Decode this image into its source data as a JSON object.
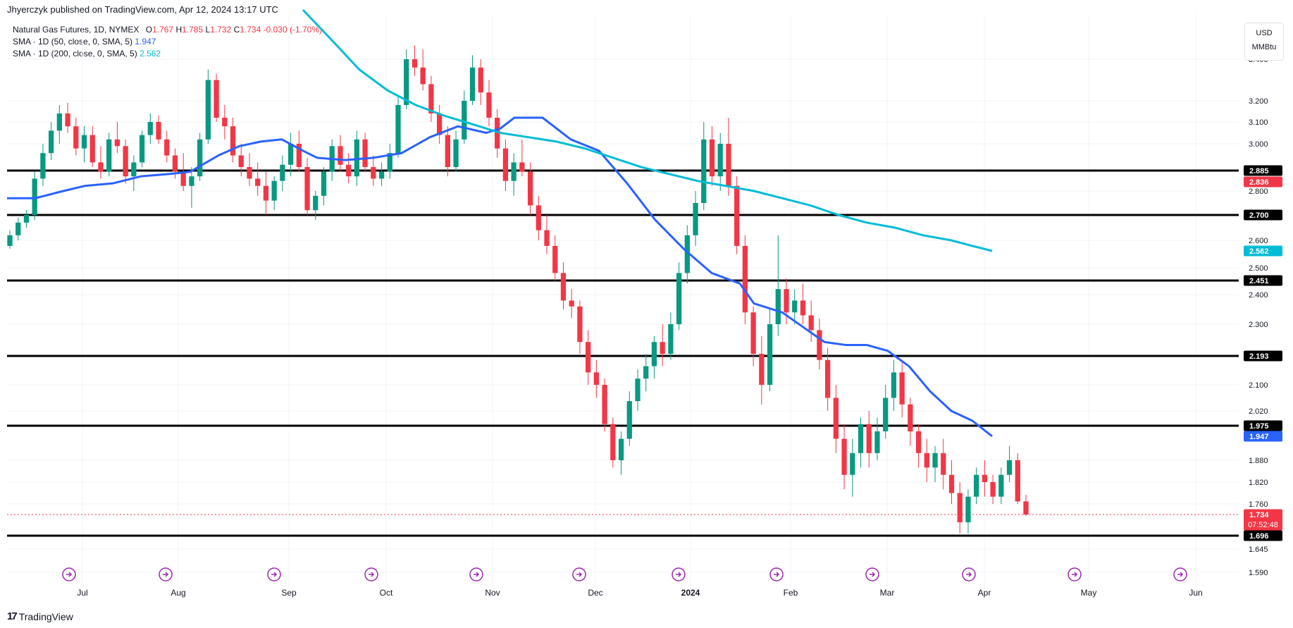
{
  "header": {
    "publish_line": "Jhyerczyk published on TradingView.com, Apr 12, 2024 13:17 UTC"
  },
  "legend": {
    "symbol": "Natural Gas Futures, 1D, NYMEX",
    "ohlc_prefix": "O",
    "open": "1.767",
    "high_prefix": "H",
    "high": "1.785",
    "low_prefix": "L",
    "low": "1.732",
    "close_prefix": "C",
    "close": "1.734",
    "change": "-0.030 (-1.70%)",
    "sma50_label": "SMA · 1D (50, close, 0, SMA, 5)",
    "sma50_value": "1.947",
    "sma200_label": "SMA · 1D (200, close, 0, SMA, 5)",
    "sma200_value": "2.562"
  },
  "units": {
    "currency": "USD",
    "unit": "MMBtu"
  },
  "footer": {
    "brand": "TradingView",
    "logo_glyph": "17"
  },
  "colors": {
    "up": "#089981",
    "down": "#f23645",
    "sma50": "#2962ff",
    "sma200": "#00bcd4",
    "hline": "#000000",
    "event": "#9c27b0",
    "grid": "#f0f3fa"
  },
  "chart_data": {
    "type": "candlestick",
    "y_ticks": [
      "1.590",
      "1.645",
      "1.760",
      "1.820",
      "1.880",
      "2.020",
      "2.100",
      "2.300",
      "2.400",
      "2.500",
      "2.600",
      "2.800",
      "3.000",
      "3.100",
      "3.200",
      "3.400"
    ],
    "x_ticks": [
      "Jul",
      "Aug",
      "Sep",
      "Oct",
      "Nov",
      "Dec",
      "2024",
      "Feb",
      "Mar",
      "Apr",
      "May",
      "Jun"
    ],
    "horizontal_levels": [
      "2.885",
      "2.700",
      "2.451",
      "2.193",
      "1.975",
      "1.696"
    ],
    "price_badges": [
      {
        "label": "2.885",
        "color": "#000000"
      },
      {
        "label": "2.836",
        "color": "#f23645"
      },
      {
        "label": "2.700",
        "color": "#000000"
      },
      {
        "label": "2.562",
        "color": "#00bcd4"
      },
      {
        "label": "2.451",
        "color": "#000000"
      },
      {
        "label": "2.193",
        "color": "#000000"
      },
      {
        "label": "1.975",
        "color": "#000000"
      },
      {
        "label": "1.947",
        "color": "#2962ff"
      },
      {
        "label": "1.734",
        "color": "#f23645",
        "extra": "07:52:48"
      },
      {
        "label": "1.696",
        "color": "#000000"
      }
    ],
    "last_price": 1.734,
    "countdown": "07:52:48",
    "series": [
      {
        "type": "sma",
        "period": 50,
        "last": 1.947,
        "points": [
          [
            0,
            2.77
          ],
          [
            40,
            2.77
          ],
          [
            80,
            2.8
          ],
          [
            110,
            2.82
          ],
          [
            150,
            2.83
          ],
          [
            190,
            2.86
          ],
          [
            230,
            2.87
          ],
          [
            260,
            2.88
          ],
          [
            300,
            2.95
          ],
          [
            330,
            2.99
          ],
          [
            360,
            3.01
          ],
          [
            390,
            3.02
          ],
          [
            420,
            2.97
          ],
          [
            440,
            2.94
          ],
          [
            480,
            2.93
          ],
          [
            520,
            2.94
          ],
          [
            560,
            2.96
          ],
          [
            600,
            3.03
          ],
          [
            640,
            3.08
          ],
          [
            680,
            3.05
          ],
          [
            700,
            3.07
          ],
          [
            720,
            3.12
          ],
          [
            760,
            3.12
          ],
          [
            800,
            3.02
          ],
          [
            840,
            2.97
          ],
          [
            880,
            2.83
          ],
          [
            920,
            2.68
          ],
          [
            960,
            2.57
          ],
          [
            1000,
            2.48
          ],
          [
            1040,
            2.44
          ],
          [
            1060,
            2.37
          ],
          [
            1100,
            2.34
          ],
          [
            1130,
            2.29
          ],
          [
            1160,
            2.24
          ],
          [
            1190,
            2.23
          ],
          [
            1220,
            2.23
          ],
          [
            1250,
            2.21
          ],
          [
            1280,
            2.16
          ],
          [
            1310,
            2.08
          ],
          [
            1340,
            2.02
          ],
          [
            1370,
            1.99
          ],
          [
            1398,
            1.947
          ]
        ]
      },
      {
        "type": "sma",
        "period": 200,
        "last": 2.562,
        "points": [
          [
            420,
            3.65
          ],
          [
            460,
            3.5
          ],
          [
            500,
            3.35
          ],
          [
            540,
            3.25
          ],
          [
            580,
            3.18
          ],
          [
            620,
            3.13
          ],
          [
            660,
            3.09
          ],
          [
            700,
            3.05
          ],
          [
            740,
            3.03
          ],
          [
            780,
            3.01
          ],
          [
            820,
            2.98
          ],
          [
            860,
            2.94
          ],
          [
            900,
            2.9
          ],
          [
            940,
            2.87
          ],
          [
            980,
            2.84
          ],
          [
            1020,
            2.82
          ],
          [
            1060,
            2.8
          ],
          [
            1100,
            2.77
          ],
          [
            1140,
            2.74
          ],
          [
            1180,
            2.7
          ],
          [
            1220,
            2.67
          ],
          [
            1260,
            2.65
          ],
          [
            1300,
            2.62
          ],
          [
            1340,
            2.6
          ],
          [
            1370,
            2.58
          ],
          [
            1398,
            2.562
          ]
        ]
      }
    ],
    "ohlc": [
      [
        2.58,
        2.64,
        2.57,
        2.62
      ],
      [
        2.62,
        2.69,
        2.6,
        2.67
      ],
      [
        2.67,
        2.72,
        2.65,
        2.7
      ],
      [
        2.7,
        2.88,
        2.68,
        2.85
      ],
      [
        2.85,
        3.0,
        2.82,
        2.96
      ],
      [
        2.96,
        3.1,
        2.93,
        3.06
      ],
      [
        3.06,
        3.18,
        3.0,
        3.14
      ],
      [
        3.14,
        3.19,
        3.05,
        3.08
      ],
      [
        3.08,
        3.12,
        2.95,
        2.98
      ],
      [
        2.98,
        3.08,
        2.92,
        3.04
      ],
      [
        3.04,
        3.08,
        2.9,
        2.92
      ],
      [
        2.92,
        2.99,
        2.85,
        2.88
      ],
      [
        2.88,
        3.05,
        2.86,
        3.02
      ],
      [
        3.02,
        3.1,
        2.96,
        2.99
      ],
      [
        2.99,
        3.02,
        2.83,
        2.86
      ],
      [
        2.86,
        2.95,
        2.8,
        2.92
      ],
      [
        2.92,
        3.06,
        2.9,
        3.04
      ],
      [
        3.04,
        3.14,
        3.0,
        3.1
      ],
      [
        3.1,
        3.13,
        3.0,
        3.02
      ],
      [
        3.02,
        3.06,
        2.92,
        2.95
      ],
      [
        2.95,
        2.98,
        2.85,
        2.88
      ],
      [
        2.88,
        2.96,
        2.8,
        2.82
      ],
      [
        2.82,
        2.9,
        2.73,
        2.86
      ],
      [
        2.86,
        3.05,
        2.84,
        3.02
      ],
      [
        3.02,
        3.35,
        3.0,
        3.3
      ],
      [
        3.3,
        3.33,
        3.1,
        3.12
      ],
      [
        3.12,
        3.18,
        3.02,
        3.08
      ],
      [
        3.08,
        3.12,
        2.92,
        2.95
      ],
      [
        2.95,
        3.0,
        2.86,
        2.9
      ],
      [
        2.9,
        2.96,
        2.82,
        2.85
      ],
      [
        2.85,
        2.92,
        2.78,
        2.82
      ],
      [
        2.82,
        2.88,
        2.7,
        2.76
      ],
      [
        2.76,
        2.86,
        2.72,
        2.84
      ],
      [
        2.84,
        2.95,
        2.8,
        2.91
      ],
      [
        2.91,
        3.05,
        2.86,
        3.0
      ],
      [
        3.0,
        3.06,
        2.88,
        2.9
      ],
      [
        2.9,
        2.94,
        2.7,
        2.72
      ],
      [
        2.72,
        2.8,
        2.68,
        2.78
      ],
      [
        2.78,
        2.9,
        2.74,
        2.88
      ],
      [
        2.88,
        3.02,
        2.84,
        2.99
      ],
      [
        2.99,
        3.04,
        2.88,
        2.91
      ],
      [
        2.91,
        2.96,
        2.83,
        2.86
      ],
      [
        2.86,
        3.06,
        2.82,
        3.02
      ],
      [
        3.02,
        3.05,
        2.88,
        2.9
      ],
      [
        2.9,
        2.95,
        2.82,
        2.85
      ],
      [
        2.85,
        2.92,
        2.82,
        2.88
      ],
      [
        2.88,
        3.0,
        2.85,
        2.96
      ],
      [
        2.96,
        3.22,
        2.94,
        3.18
      ],
      [
        3.18,
        3.45,
        3.16,
        3.4
      ],
      [
        3.4,
        3.47,
        3.32,
        3.36
      ],
      [
        3.36,
        3.45,
        3.25,
        3.28
      ],
      [
        3.28,
        3.32,
        3.1,
        3.14
      ],
      [
        3.14,
        3.18,
        3.0,
        3.04
      ],
      [
        3.04,
        3.08,
        2.86,
        2.9
      ],
      [
        2.9,
        3.06,
        2.88,
        3.02
      ],
      [
        3.02,
        3.25,
        3.0,
        3.2
      ],
      [
        3.2,
        3.42,
        3.18,
        3.36
      ],
      [
        3.36,
        3.4,
        3.18,
        3.24
      ],
      [
        3.24,
        3.3,
        3.08,
        3.12
      ],
      [
        3.12,
        3.16,
        2.94,
        2.98
      ],
      [
        2.98,
        3.02,
        2.8,
        2.84
      ],
      [
        2.84,
        2.96,
        2.78,
        2.92
      ],
      [
        2.92,
        3.02,
        2.86,
        2.88
      ],
      [
        2.88,
        2.92,
        2.7,
        2.74
      ],
      [
        2.74,
        2.78,
        2.6,
        2.64
      ],
      [
        2.64,
        2.7,
        2.55,
        2.58
      ],
      [
        2.58,
        2.62,
        2.45,
        2.48
      ],
      [
        2.48,
        2.52,
        2.35,
        2.38
      ],
      [
        2.38,
        2.42,
        2.32,
        2.36
      ],
      [
        2.36,
        2.38,
        2.2,
        2.24
      ],
      [
        2.24,
        2.28,
        2.1,
        2.14
      ],
      [
        2.14,
        2.18,
        2.06,
        2.1
      ],
      [
        2.1,
        2.12,
        1.96,
        1.98
      ],
      [
        1.98,
        2.0,
        1.86,
        1.88
      ],
      [
        1.88,
        1.96,
        1.84,
        1.94
      ],
      [
        1.94,
        2.08,
        1.92,
        2.05
      ],
      [
        2.05,
        2.15,
        2.02,
        2.12
      ],
      [
        2.12,
        2.2,
        2.08,
        2.16
      ],
      [
        2.16,
        2.26,
        2.12,
        2.24
      ],
      [
        2.24,
        2.3,
        2.16,
        2.2
      ],
      [
        2.2,
        2.34,
        2.18,
        2.3
      ],
      [
        2.3,
        2.52,
        2.28,
        2.48
      ],
      [
        2.48,
        2.66,
        2.44,
        2.62
      ],
      [
        2.62,
        2.8,
        2.58,
        2.75
      ],
      [
        2.75,
        3.1,
        2.72,
        3.02
      ],
      [
        3.02,
        3.08,
        2.82,
        2.86
      ],
      [
        2.86,
        3.05,
        2.8,
        3.0
      ],
      [
        3.0,
        3.12,
        2.78,
        2.82
      ],
      [
        2.82,
        2.86,
        2.55,
        2.58
      ],
      [
        2.58,
        2.62,
        2.3,
        2.34
      ],
      [
        2.34,
        2.36,
        2.16,
        2.2
      ],
      [
        2.2,
        2.26,
        2.04,
        2.1
      ],
      [
        2.1,
        2.35,
        2.08,
        2.3
      ],
      [
        2.3,
        2.62,
        2.26,
        2.42
      ],
      [
        2.42,
        2.46,
        2.3,
        2.34
      ],
      [
        2.34,
        2.42,
        2.3,
        2.38
      ],
      [
        2.38,
        2.44,
        2.3,
        2.33
      ],
      [
        2.33,
        2.38,
        2.24,
        2.28
      ],
      [
        2.28,
        2.32,
        2.15,
        2.18
      ],
      [
        2.18,
        2.22,
        2.02,
        2.06
      ],
      [
        2.06,
        2.1,
        1.9,
        1.94
      ],
      [
        1.94,
        1.98,
        1.8,
        1.84
      ],
      [
        1.84,
        1.94,
        1.78,
        1.9
      ],
      [
        1.9,
        2.0,
        1.86,
        1.98
      ],
      [
        1.98,
        2.02,
        1.86,
        1.9
      ],
      [
        1.9,
        2.0,
        1.88,
        1.96
      ],
      [
        1.96,
        2.1,
        1.94,
        2.06
      ],
      [
        2.06,
        2.18,
        2.02,
        2.14
      ],
      [
        2.14,
        2.18,
        2.0,
        2.04
      ],
      [
        2.04,
        2.06,
        1.92,
        1.96
      ],
      [
        1.96,
        1.98,
        1.86,
        1.9
      ],
      [
        1.9,
        1.94,
        1.82,
        1.86
      ],
      [
        1.86,
        1.92,
        1.82,
        1.9
      ],
      [
        1.9,
        1.94,
        1.8,
        1.84
      ],
      [
        1.84,
        1.88,
        1.76,
        1.79
      ],
      [
        1.79,
        1.82,
        1.7,
        1.72
      ],
      [
        1.72,
        1.8,
        1.7,
        1.78
      ],
      [
        1.78,
        1.86,
        1.76,
        1.84
      ],
      [
        1.84,
        1.88,
        1.78,
        1.82
      ],
      [
        1.82,
        1.84,
        1.76,
        1.78
      ],
      [
        1.78,
        1.86,
        1.76,
        1.84
      ],
      [
        1.84,
        1.92,
        1.82,
        1.88
      ],
      [
        1.88,
        1.9,
        1.76,
        1.767
      ],
      [
        1.767,
        1.785,
        1.732,
        1.734
      ]
    ]
  }
}
